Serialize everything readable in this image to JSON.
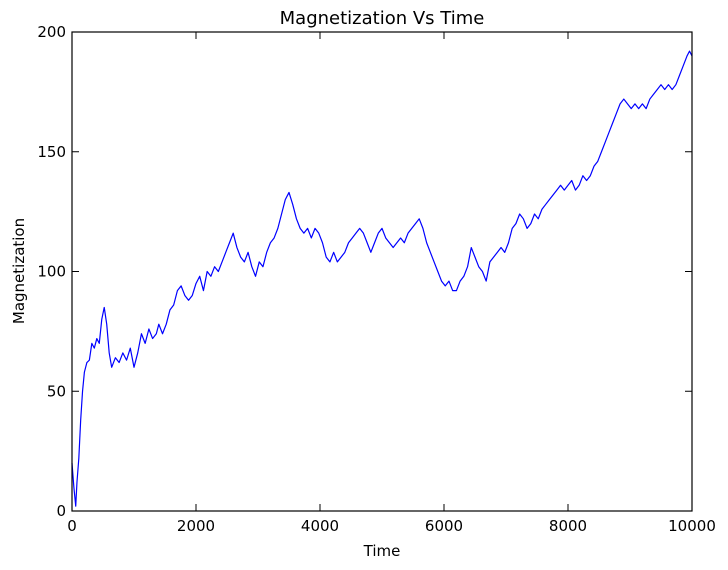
{
  "chart_data": {
    "type": "line",
    "title": "Magnetization Vs Time",
    "xlabel": "Time",
    "ylabel": "Magnetization",
    "xlim": [
      0,
      10000
    ],
    "ylim": [
      0,
      200
    ],
    "x_ticks": [
      0,
      2000,
      4000,
      6000,
      8000,
      10000
    ],
    "y_ticks": [
      0,
      50,
      100,
      150,
      200
    ],
    "grid": false,
    "legend": "none",
    "colors": {
      "series": "#0000ff",
      "axes": "#000000"
    },
    "series": [
      {
        "color": "#0000ff",
        "points": [
          [
            0,
            20
          ],
          [
            30,
            10
          ],
          [
            60,
            2
          ],
          [
            80,
            12
          ],
          [
            110,
            22
          ],
          [
            140,
            38
          ],
          [
            170,
            50
          ],
          [
            200,
            58
          ],
          [
            240,
            62
          ],
          [
            280,
            63
          ],
          [
            320,
            70
          ],
          [
            360,
            68
          ],
          [
            400,
            72
          ],
          [
            440,
            70
          ],
          [
            480,
            80
          ],
          [
            520,
            85
          ],
          [
            560,
            78
          ],
          [
            600,
            66
          ],
          [
            640,
            60
          ],
          [
            700,
            64
          ],
          [
            760,
            62
          ],
          [
            820,
            66
          ],
          [
            880,
            63
          ],
          [
            940,
            68
          ],
          [
            1000,
            60
          ],
          [
            1060,
            66
          ],
          [
            1120,
            74
          ],
          [
            1180,
            70
          ],
          [
            1240,
            76
          ],
          [
            1300,
            72
          ],
          [
            1360,
            74
          ],
          [
            1400,
            78
          ],
          [
            1460,
            74
          ],
          [
            1520,
            78
          ],
          [
            1580,
            84
          ],
          [
            1640,
            86
          ],
          [
            1700,
            92
          ],
          [
            1760,
            94
          ],
          [
            1820,
            90
          ],
          [
            1880,
            88
          ],
          [
            1940,
            90
          ],
          [
            2000,
            95
          ],
          [
            2060,
            98
          ],
          [
            2120,
            92
          ],
          [
            2180,
            100
          ],
          [
            2240,
            98
          ],
          [
            2300,
            102
          ],
          [
            2360,
            100
          ],
          [
            2420,
            104
          ],
          [
            2480,
            108
          ],
          [
            2540,
            112
          ],
          [
            2600,
            116
          ],
          [
            2660,
            110
          ],
          [
            2720,
            106
          ],
          [
            2780,
            104
          ],
          [
            2840,
            108
          ],
          [
            2900,
            102
          ],
          [
            2960,
            98
          ],
          [
            3020,
            104
          ],
          [
            3080,
            102
          ],
          [
            3140,
            108
          ],
          [
            3200,
            112
          ],
          [
            3260,
            114
          ],
          [
            3320,
            118
          ],
          [
            3380,
            124
          ],
          [
            3440,
            130
          ],
          [
            3500,
            133
          ],
          [
            3560,
            128
          ],
          [
            3620,
            122
          ],
          [
            3680,
            118
          ],
          [
            3740,
            116
          ],
          [
            3800,
            118
          ],
          [
            3860,
            114
          ],
          [
            3920,
            118
          ],
          [
            3980,
            116
          ],
          [
            4040,
            112
          ],
          [
            4100,
            106
          ],
          [
            4160,
            104
          ],
          [
            4220,
            108
          ],
          [
            4280,
            104
          ],
          [
            4340,
            106
          ],
          [
            4400,
            108
          ],
          [
            4460,
            112
          ],
          [
            4520,
            114
          ],
          [
            4580,
            116
          ],
          [
            4640,
            118
          ],
          [
            4700,
            116
          ],
          [
            4760,
            112
          ],
          [
            4820,
            108
          ],
          [
            4880,
            112
          ],
          [
            4940,
            116
          ],
          [
            5000,
            118
          ],
          [
            5060,
            114
          ],
          [
            5120,
            112
          ],
          [
            5180,
            110
          ],
          [
            5240,
            112
          ],
          [
            5300,
            114
          ],
          [
            5360,
            112
          ],
          [
            5420,
            116
          ],
          [
            5480,
            118
          ],
          [
            5540,
            120
          ],
          [
            5600,
            122
          ],
          [
            5660,
            118
          ],
          [
            5720,
            112
          ],
          [
            5780,
            108
          ],
          [
            5840,
            104
          ],
          [
            5900,
            100
          ],
          [
            5960,
            96
          ],
          [
            6020,
            94
          ],
          [
            6080,
            96
          ],
          [
            6140,
            92
          ],
          [
            6200,
            92
          ],
          [
            6260,
            96
          ],
          [
            6320,
            98
          ],
          [
            6380,
            102
          ],
          [
            6440,
            110
          ],
          [
            6500,
            106
          ],
          [
            6560,
            102
          ],
          [
            6620,
            100
          ],
          [
            6680,
            96
          ],
          [
            6740,
            104
          ],
          [
            6800,
            106
          ],
          [
            6860,
            108
          ],
          [
            6920,
            110
          ],
          [
            6980,
            108
          ],
          [
            7040,
            112
          ],
          [
            7100,
            118
          ],
          [
            7160,
            120
          ],
          [
            7220,
            124
          ],
          [
            7280,
            122
          ],
          [
            7340,
            118
          ],
          [
            7400,
            120
          ],
          [
            7460,
            124
          ],
          [
            7520,
            122
          ],
          [
            7580,
            126
          ],
          [
            7640,
            128
          ],
          [
            7700,
            130
          ],
          [
            7760,
            132
          ],
          [
            7820,
            134
          ],
          [
            7880,
            136
          ],
          [
            7940,
            134
          ],
          [
            8000,
            136
          ],
          [
            8060,
            138
          ],
          [
            8120,
            134
          ],
          [
            8180,
            136
          ],
          [
            8240,
            140
          ],
          [
            8300,
            138
          ],
          [
            8360,
            140
          ],
          [
            8420,
            144
          ],
          [
            8480,
            146
          ],
          [
            8540,
            150
          ],
          [
            8600,
            154
          ],
          [
            8660,
            158
          ],
          [
            8720,
            162
          ],
          [
            8780,
            166
          ],
          [
            8840,
            170
          ],
          [
            8900,
            172
          ],
          [
            8960,
            170
          ],
          [
            9020,
            168
          ],
          [
            9080,
            170
          ],
          [
            9140,
            168
          ],
          [
            9200,
            170
          ],
          [
            9260,
            168
          ],
          [
            9320,
            172
          ],
          [
            9380,
            174
          ],
          [
            9440,
            176
          ],
          [
            9500,
            178
          ],
          [
            9560,
            176
          ],
          [
            9620,
            178
          ],
          [
            9680,
            176
          ],
          [
            9740,
            178
          ],
          [
            9800,
            182
          ],
          [
            9860,
            186
          ],
          [
            9920,
            190
          ],
          [
            9960,
            192
          ],
          [
            10000,
            190
          ]
        ]
      }
    ]
  }
}
